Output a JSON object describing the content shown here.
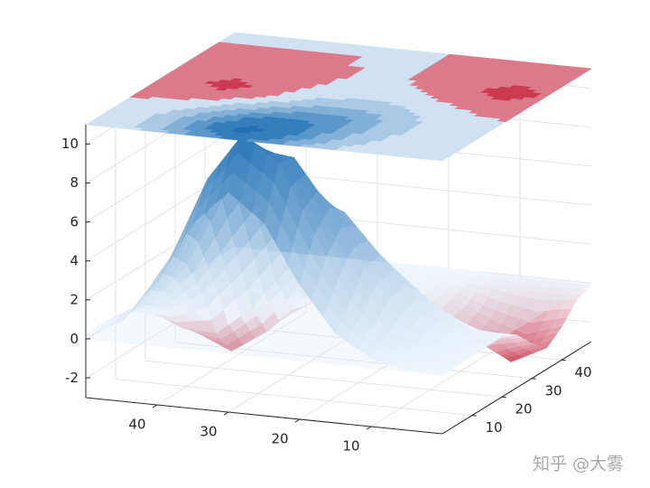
{
  "chart_data": {
    "type": "surface",
    "x": [
      0,
      5,
      10,
      15,
      20,
      25,
      30,
      35,
      40,
      45,
      50
    ],
    "y": [
      0,
      5,
      10,
      15,
      20,
      25,
      30,
      35,
      40,
      45,
      50
    ],
    "z": [
      [
        0,
        0.1,
        0.1,
        0.1,
        0.1,
        -0.3,
        -1.2,
        -1.9,
        -1.3,
        -0.4,
        -0.1
      ],
      [
        0.1,
        0.3,
        0.5,
        0.6,
        0.4,
        -0.3,
        -1.8,
        -2.8,
        -1.9,
        -0.6,
        -0.1
      ],
      [
        0.5,
        1.1,
        1.7,
        2.0,
        1.5,
        0.4,
        -1.0,
        -1.8,
        -1.3,
        -0.4,
        -0.1
      ],
      [
        1.6,
        2.8,
        4.0,
        4.2,
        3.0,
        1.4,
        0.1,
        -0.5,
        -0.4,
        -0.1,
        0
      ],
      [
        3.9,
        6.0,
        6.9,
        6.2,
        4.2,
        2.0,
        0.6,
        0.1,
        0,
        0,
        0
      ],
      [
        6.9,
        9.5,
        9.3,
        6.9,
        3.9,
        1.6,
        0.5,
        0.1,
        0,
        0,
        0
      ],
      [
        8.3,
        10.8,
        9.5,
        5.8,
        2.5,
        0.5,
        -0.1,
        -0.1,
        0,
        0,
        0
      ],
      [
        6.5,
        8.3,
        6.8,
        3.5,
        0.3,
        -1.4,
        -1.2,
        -0.4,
        -0.1,
        0,
        0
      ],
      [
        3.3,
        4.2,
        3.3,
        1.3,
        -1.2,
        -2.6,
        -1.8,
        -0.6,
        -0.1,
        0,
        0
      ],
      [
        1.1,
        1.4,
        1.0,
        0.2,
        -1.1,
        -1.8,
        -1.3,
        -0.4,
        -0.1,
        0,
        0
      ],
      [
        0.2,
        0.3,
        0.2,
        0,
        -0.3,
        -0.6,
        -0.4,
        -0.1,
        0,
        0,
        0
      ]
    ],
    "xlim": [
      0,
      50
    ],
    "ylim": [
      0,
      50
    ],
    "zlim": [
      -3,
      11
    ],
    "xticks": [
      10,
      20,
      30,
      40
    ],
    "yticks": [
      10,
      20,
      30,
      40
    ],
    "zticks": [
      -2,
      0,
      2,
      4,
      6,
      8,
      10
    ],
    "grid": true,
    "contour": "top",
    "plane_z": 0,
    "colors": {
      "positive": "#2171b5",
      "zero": "#f7fbff",
      "negative": "#cb3a50",
      "plane": "#dcecf7"
    },
    "watermark": "知乎 @大雾"
  }
}
